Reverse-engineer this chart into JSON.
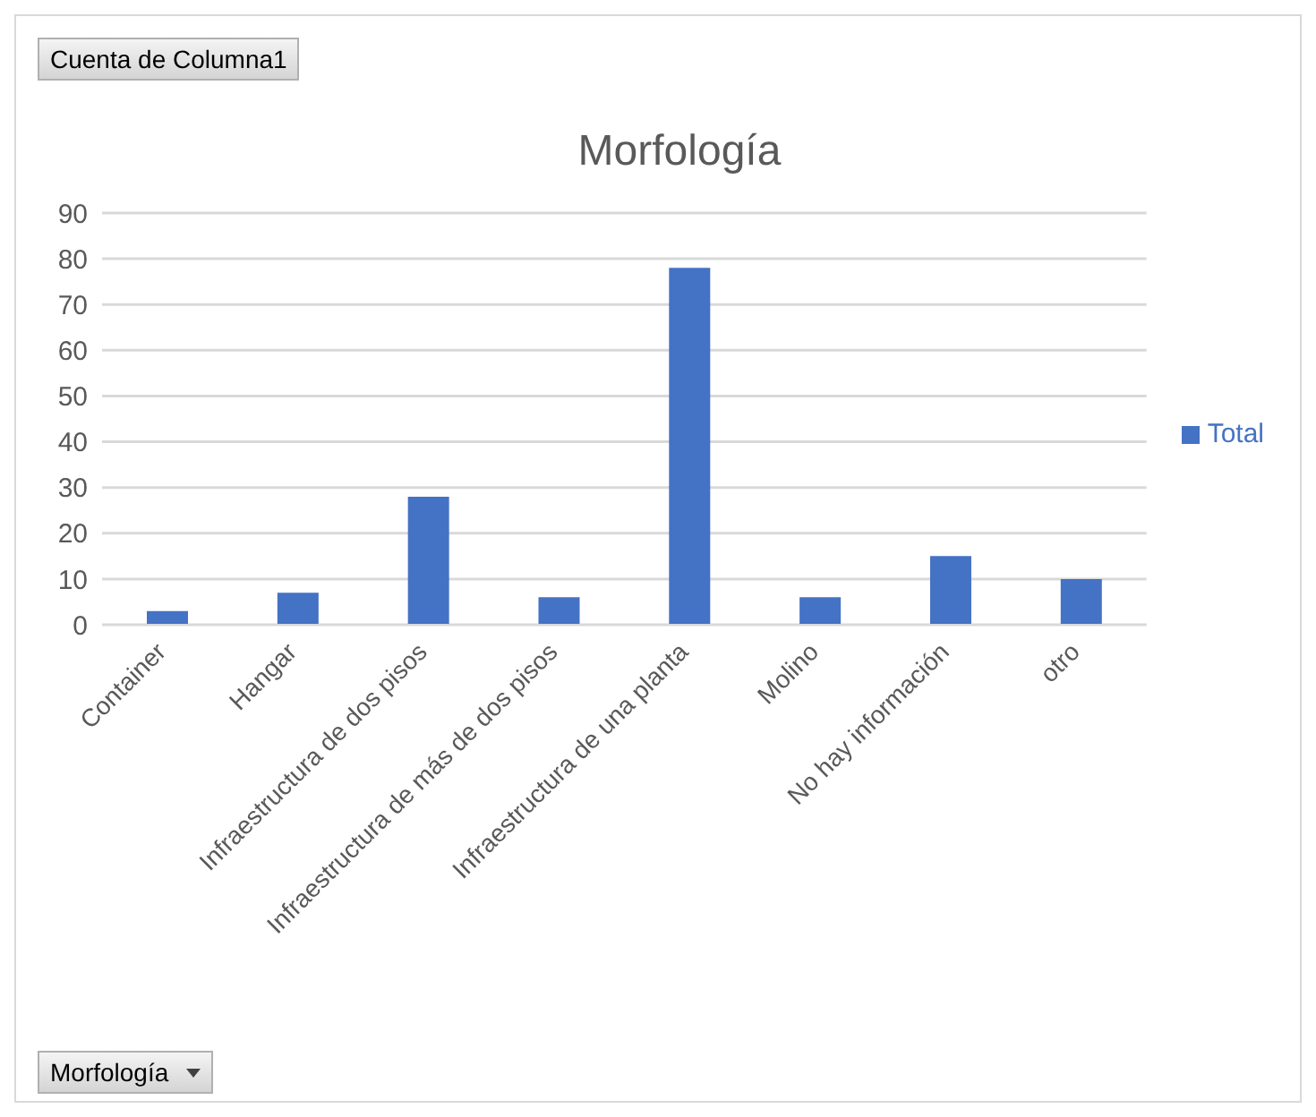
{
  "chart_data": {
    "type": "bar",
    "title": "Morfología",
    "categories": [
      "Container",
      "Hangar",
      "Infraestructura de dos pisos",
      "Infraestructura de más de dos pisos",
      "Infraestructura de una planta",
      "Molino",
      "No hay información",
      "otro"
    ],
    "series": [
      {
        "name": "Total",
        "color": "#4472c4",
        "values": [
          3,
          7,
          28,
          6,
          78,
          6,
          15,
          10
        ]
      }
    ],
    "ylim": [
      0,
      90
    ],
    "yticks": [
      0,
      10,
      20,
      30,
      40,
      50,
      60,
      70,
      80,
      90
    ],
    "grid": "y",
    "legend": "right",
    "annotations": [
      "Cuenta de Columna1",
      "Morfología"
    ]
  }
}
